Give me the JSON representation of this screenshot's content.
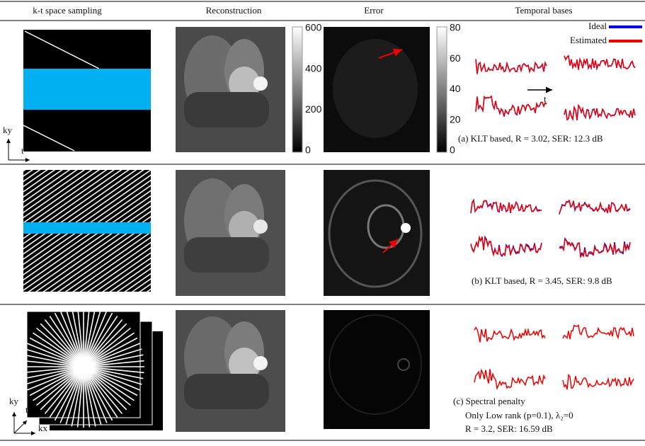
{
  "header": {
    "columns": [
      "k-t space sampling",
      "Reconstruction",
      "Error",
      "Temporal bases"
    ]
  },
  "colorbars": {
    "reconstruction": [
      600,
      400,
      200,
      0
    ],
    "error": [
      80,
      60,
      40,
      20,
      0
    ]
  },
  "legend": {
    "ideal": "Ideal",
    "estimated": "Estimated"
  },
  "rows": [
    {
      "axes": [
        "ky",
        "t"
      ],
      "basis_axis": "t",
      "caption": [
        "(a) KLT based, R = 3.02, SER: 12.3 dB"
      ]
    },
    {
      "caption": [
        "(b) KLT based, R = 3.45, SER: 9.8 dB"
      ]
    },
    {
      "axes": [
        "ky",
        "t",
        "kx"
      ],
      "caption": [
        "(c)  Spectral penalty",
        "Only Low rank (p=0.1), λ₂=0",
        "R = 3.2, SER: 16.59 dB"
      ]
    }
  ]
}
